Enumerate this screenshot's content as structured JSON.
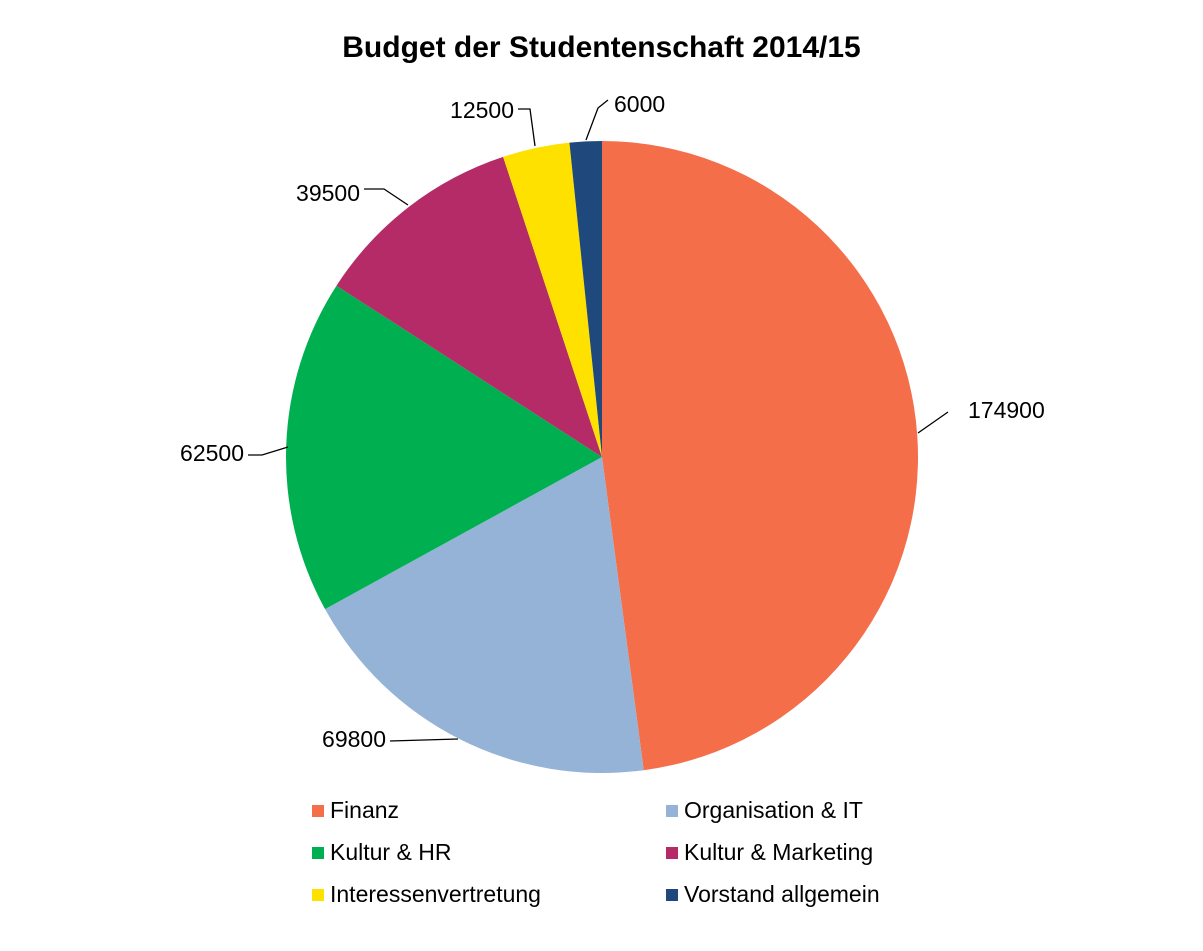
{
  "chart_data": {
    "type": "pie",
    "title": "Budget der Studentenschaft 2014/15",
    "start_angle_deg": 0,
    "direction": "clockwise",
    "legend_position": "bottom",
    "slices": [
      {
        "label": "Finanz",
        "value": 174900,
        "color": "#F46E4A"
      },
      {
        "label": "Organisation & IT",
        "value": 69800,
        "color": "#95B3D7"
      },
      {
        "label": "Kultur & HR",
        "value": 62500,
        "color": "#00AF50"
      },
      {
        "label": "Kultur & Marketing",
        "value": 39500,
        "color": "#B52B68"
      },
      {
        "label": "Interessenvertretung",
        "value": 12500,
        "color": "#FFE100"
      },
      {
        "label": "Vorstand allgemein",
        "value": 6000,
        "color": "#1F497D"
      }
    ]
  }
}
